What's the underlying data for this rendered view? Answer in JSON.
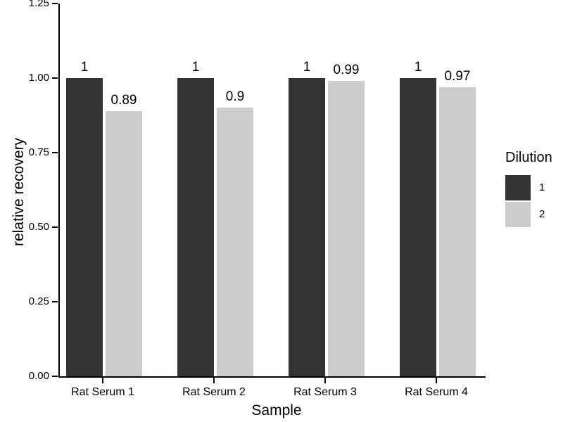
{
  "chart_data": {
    "type": "bar",
    "title": "",
    "xlabel": "Sample",
    "ylabel": "relative recovery",
    "categories": [
      "Rat Serum 1",
      "Rat Serum 2",
      "Rat Serum 3",
      "Rat Serum 4"
    ],
    "series": [
      {
        "name": "1",
        "color": "#333333",
        "values": [
          1,
          1,
          1,
          1
        ],
        "value_labels": [
          "1",
          "1",
          "1",
          "1"
        ]
      },
      {
        "name": "2",
        "color": "#cccccc",
        "values": [
          0.89,
          0.9,
          0.99,
          0.97
        ],
        "value_labels": [
          "0.89",
          "0.9",
          "0.99",
          "0.97"
        ]
      }
    ],
    "ylim": [
      0,
      1.25
    ],
    "yticks": [
      0,
      0.25,
      0.5,
      0.75,
      1,
      1.25
    ],
    "ytick_labels": [
      "0.00",
      "0.25",
      "0.50",
      "0.75",
      "1.00",
      "1.25"
    ],
    "grid": false,
    "background": "#ffffff",
    "axis_color": "#000000",
    "legend": {
      "title": "Dilution",
      "position": "right",
      "entries": [
        {
          "label": "1",
          "color": "#333333"
        },
        {
          "label": "2",
          "color": "#cccccc"
        }
      ]
    }
  }
}
